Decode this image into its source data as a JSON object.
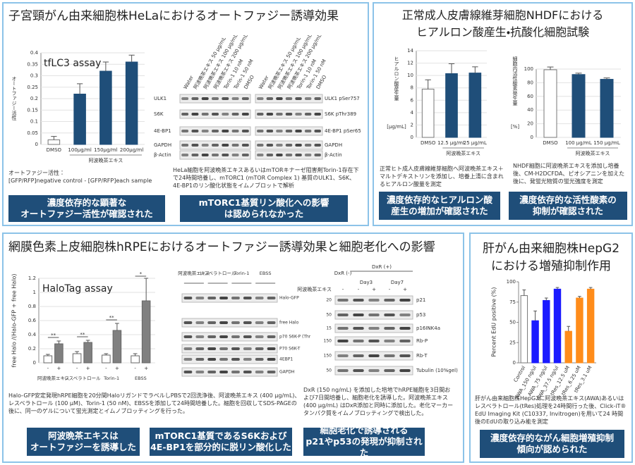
{
  "panels": {
    "hela": {
      "title": "子宮頸がん由来細胞株HeLaにおけるオートファジー誘導効果",
      "note": [
        "オートファジー活性：",
        "[GFP/RFP]negative control - [GFP/RFP]each sample"
      ],
      "blot": {
        "lanes": [
          "Water",
          "阿波晩茶エキス 50 μg/mL",
          "阿波晩茶エキス 100 μg/mL",
          "阿波晩茶エキス 200 μg/mL",
          "Torin-1 10 nM",
          "Torin-1 50 nM",
          "DMSO"
        ],
        "left_rows": [
          "ULK1",
          "S6K",
          "4E-BP1",
          "GAPDH",
          "β-Actin"
        ],
        "right_rows": [
          "ULK1 pSer757",
          "S6K pThr389",
          "4E-BP1 pSer65",
          "GAPDH",
          "β-Actin"
        ]
      },
      "caption": "HeLa細胞を阿波晩茶エキスあるいはmTORキナーゼ阻害剤Torin-1存在下で24時間培養し、mTORC1 (mTOR Complex 1) 基質のULK1、S6K、4E-BP1のリン酸化状態をイムノブロットで解析",
      "conclusions": [
        [
          "濃度依存的な顕著な",
          "オートファジー活性が確認された"
        ],
        [
          "mTORC1基質リン酸化への影響",
          "は認められなかった"
        ]
      ]
    },
    "nhdf": {
      "title": [
        "正常成人皮膚線維芽細胞NHDFにおける",
        "ヒアルロン酸産生・抗酸化細胞試験"
      ],
      "captions": [
        "正常ヒト成人皮膚線維芽細胞へ阿波晩茶エキス＋マルトデキストリンを添加し、培養上清に含まれるヒアルロン酸量を測定",
        "NHDF細胞に阿波晩茶エキスを添加し培養後、CM-H2DCFDA、ピオシアニンを加えた後に、発蛍光物質の蛍光強度を測定"
      ],
      "conclusions": [
        [
          "濃度依存的なヒアルロン酸",
          "産生の増加が確認された"
        ],
        [
          "濃度依存的な活性酸素の",
          "抑制が確認された"
        ]
      ]
    },
    "hrpe": {
      "title": "網膜色素上皮細胞株hRPEにおけるオートファジー誘導効果と細胞老化への影響",
      "blot1": {
        "groups": [
          "阿波晩茶エキス",
          "レスベラトロール",
          "Torin-1",
          "EBSS"
        ],
        "rows": [
          "Halo-GFP",
          "free Halo",
          "p70 S6K-P (Thr",
          "P70 S6K-T",
          "4EBP1",
          "GAPDH"
        ]
      },
      "blot2": {
        "header": [
          "DxR (-)",
          "DxR (+)",
          "Day3",
          "Day7"
        ],
        "treat": "阿波晩茶エキス",
        "signs": [
          "-",
          "-",
          "+",
          "-",
          "+"
        ],
        "rows": [
          "p21",
          "p53",
          "p16INK4a",
          "Rb-P",
          "Rb-T",
          "Tubulin (10%gel)"
        ],
        "markers": [
          "20",
          "50",
          "15",
          "150",
          "150",
          "50"
        ]
      },
      "captions": [
        "Halo-GFP安定発現hRPE細胞を20分間HaloリガンドでラベルしPBSで2回洗浄後、阿波晩茶エキス (400 μg/mL)、レスベラトロール (100 μM)、Torin-1 (50 nM)、EBSSを添加して24時間培養した。細胞を回収してSDS-PAGEの後に、同一のゲルについて蛍光測定とイムノブロッティングを行った。",
        "DxR (150 ng/mL) を添加した培地でhRPE細胞を3日間および7日間培養し、細胞老化を誘導した。阿波晩茶エキス (400 μg/mL) はDxR添加と同時に添加した。老化マーカータンパク質をイムノブロッティングで検出した。"
      ],
      "conclusions": [
        [
          "阿波晩茶エキスは",
          "オートファジーを誘導した"
        ],
        [
          "mTORC1基質であるS6Kおよび",
          "4E-BP1を部分的に脱リン酸化した"
        ],
        [
          "細胞老化で誘導される",
          "p21やp53の発現が抑制された"
        ]
      ]
    },
    "hepg2": {
      "title": [
        "肝がん由来細胞株HepG2",
        "における増殖抑制作用"
      ],
      "caption": "肝がん由来細胞株HepG2に阿波晩茶エキス(AWA)あるいはレスベラトロール(tRes)処理を24時間行った後、Click-iT® EdU Imaging Kit (C10337, Invitrogen)を用いて24 時間後のEdUの取り込み能を測定",
      "conclusion": [
        "濃度依存的ながん細胞増殖抑制",
        "傾向が認められた"
      ]
    }
  },
  "chart_data": [
    {
      "type": "bar",
      "title": "tfLC3 assay",
      "ylabel": "オートファジー活性",
      "categories": [
        "DMSO",
        "100μg/ml",
        "150μg/ml",
        "200μg/ml"
      ],
      "group_label": "阿波晩茶エキス",
      "values": [
        0.02,
        0.22,
        0.32,
        0.36
      ],
      "errors": [
        0.015,
        0.045,
        0.04,
        0.03
      ],
      "colors": [
        "#ffffff",
        "#1f4e79",
        "#1f4e79",
        "#1f4e79"
      ],
      "ylim": [
        0,
        0.4
      ],
      "yticks": [
        0,
        0.05,
        0.1,
        0.15,
        0.2,
        0.25,
        0.3,
        0.35,
        0.4
      ],
      "grid": true
    },
    {
      "type": "bar",
      "ylabel": "ヒアルロン酸産生量",
      "yunit": "[μg/mL]",
      "categories": [
        "DMSO",
        "12.5 μg/mL",
        "25 μg/mL"
      ],
      "group_label": "阿波晩茶エキス",
      "values": [
        7.8,
        10.3,
        10.4
      ],
      "errors": [
        1.5,
        1.6,
        1.0
      ],
      "colors": [
        "#ffffff",
        "#1f4e79",
        "#1f4e79"
      ],
      "ylim": [
        0,
        14
      ],
      "yticks": [
        0,
        2,
        4,
        6,
        8,
        10,
        12,
        14
      ],
      "grid": true
    },
    {
      "type": "bar",
      "ylabel": "細胞内活性酸素発生量",
      "yunit": "[%]",
      "categories": [
        "DMSO",
        "100 μg/mL",
        "150 μg/mL"
      ],
      "group_label": "阿波晩茶エキス",
      "values": [
        99,
        92,
        85
      ],
      "errors": [
        4,
        2,
        2
      ],
      "colors": [
        "#ffffff",
        "#1f4e79",
        "#1f4e79"
      ],
      "ylim": [
        0,
        100
      ],
      "yticks": [
        0,
        20,
        40,
        60,
        80,
        100
      ],
      "grid": true
    },
    {
      "type": "grouped_bar",
      "title": "HaloTag assay",
      "ylabel": "free Halo /(Halo-GFP + free Halo)",
      "categories": [
        "阿波晩茶エキス",
        "レスベラトロール",
        "Torin-1",
        "EBSS"
      ],
      "series": [
        {
          "name": "-",
          "color": "#ffffff",
          "values": [
            0.1,
            0.13,
            0.11,
            0.1
          ],
          "errors": [
            0.02,
            0.03,
            0.02,
            0.03
          ]
        },
        {
          "name": "+",
          "color": "#808080",
          "values": [
            0.27,
            0.29,
            0.46,
            0.88
          ],
          "errors": [
            0.04,
            0.03,
            0.1,
            0.32
          ]
        }
      ],
      "significance": [
        "**",
        "**",
        "**",
        "*"
      ],
      "ylim": [
        0,
        1.2
      ],
      "yticks": [
        0,
        0.2,
        0.4,
        0.6,
        0.8,
        1,
        1.2
      ],
      "grid": true
    },
    {
      "type": "bar",
      "ylabel": "Percent EdU positive (%)",
      "categories": [
        "Control",
        "AWA_150 ng/ul",
        "AWA_75 ng/ul",
        "AWA_37.5 ng/ul",
        "tRes_12.5 uM",
        "tRes_6.25 uM",
        "tRes_3.1 uM"
      ],
      "values": [
        83,
        52,
        77,
        91,
        39,
        80,
        91
      ],
      "errors": [
        7,
        12,
        3,
        2,
        6,
        2,
        2
      ],
      "colors": [
        "#ffffff",
        "#1a1aff",
        "#1a1aff",
        "#1a1aff",
        "#ff8c1a",
        "#ff8c1a",
        "#ff8c1a"
      ],
      "ylim": [
        0,
        100
      ],
      "yticks": [
        0,
        25,
        50,
        75,
        100
      ],
      "grid": false
    }
  ]
}
